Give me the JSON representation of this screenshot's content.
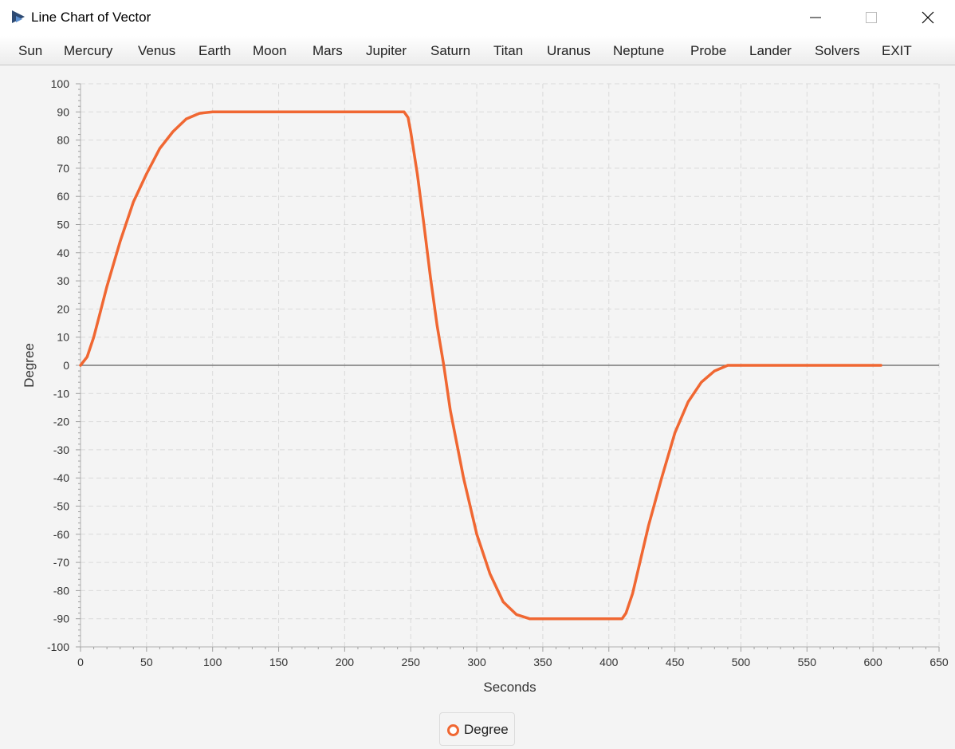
{
  "window": {
    "title": "Line Chart of Vector"
  },
  "menu": [
    "Sun",
    "Mercury",
    "Venus",
    "Earth",
    "Moon",
    "Mars",
    "Jupiter",
    "Saturn",
    "Titan",
    "Uranus",
    "Neptune",
    "Probe",
    "Lander",
    "Solvers",
    "EXIT"
  ],
  "chart_data": {
    "type": "line",
    "xlabel": "Seconds",
    "ylabel": "Degree",
    "xlim": [
      0,
      650
    ],
    "ylim": [
      -100,
      100
    ],
    "xticks": [
      0,
      50,
      100,
      150,
      200,
      250,
      300,
      350,
      400,
      450,
      500,
      550,
      600,
      650
    ],
    "yticks": [
      100,
      90,
      80,
      70,
      60,
      50,
      40,
      30,
      20,
      10,
      0,
      -10,
      -20,
      -30,
      -40,
      -50,
      -60,
      -70,
      -80,
      -90,
      -100
    ],
    "grid": true,
    "legend": "bottom-center",
    "series": [
      {
        "name": "Degree",
        "color": "#f06732",
        "x": [
          0,
          5,
          10,
          15,
          20,
          30,
          40,
          50,
          60,
          70,
          80,
          90,
          100,
          150,
          200,
          245,
          248,
          250,
          255,
          260,
          265,
          270,
          275,
          280,
          290,
          300,
          310,
          320,
          330,
          340,
          345,
          380,
          410,
          413,
          418,
          423,
          430,
          440,
          450,
          460,
          470,
          480,
          490,
          500,
          505,
          510,
          550,
          606
        ],
        "y": [
          0,
          3,
          10,
          19,
          28,
          44,
          58,
          68,
          77,
          83,
          87.5,
          89.5,
          90,
          90,
          90,
          90,
          88,
          83,
          68,
          50,
          31,
          14,
          0,
          -16,
          -40,
          -60,
          -74,
          -84,
          -88.5,
          -90,
          -90,
          -90,
          -90,
          -88,
          -81,
          -71,
          -57,
          -40,
          -24,
          -13,
          -6,
          -2,
          0,
          0,
          0,
          0,
          0,
          0
        ]
      }
    ]
  }
}
